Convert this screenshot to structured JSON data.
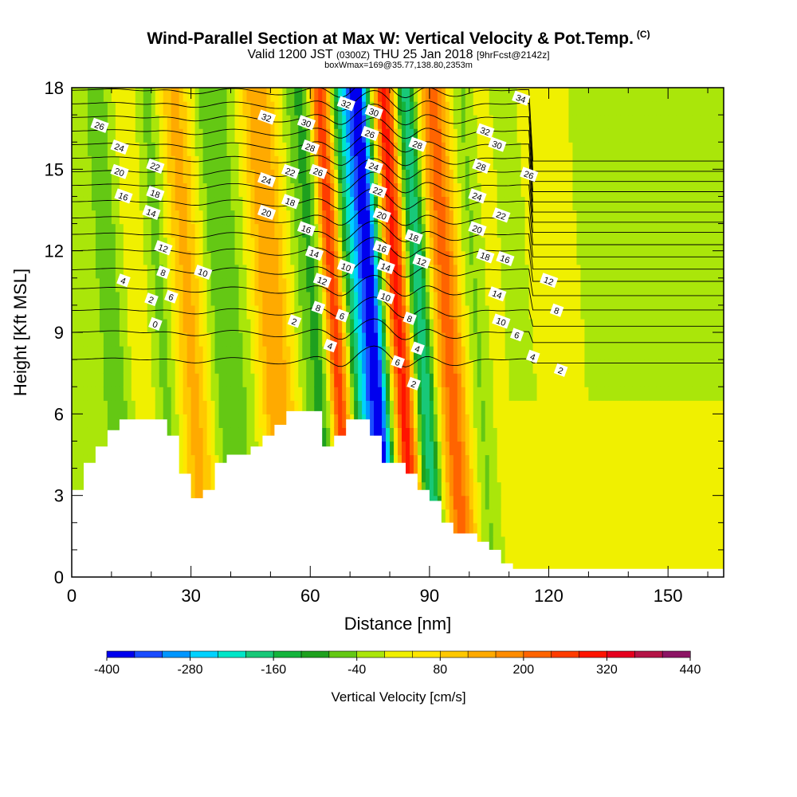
{
  "title": {
    "main": "Wind-Parallel Section at Max W: Vertical Velocity & Pot.Temp.",
    "mark": "(C)",
    "subtitle_a": "Valid 1200 JST",
    "subtitle_b": "(0300Z)",
    "subtitle_c": "THU 25 Jan 2018",
    "subtitle_d": "[9hrFcst@2142z]",
    "boxline": "boxWmax=169@35.77,138.80,2353m"
  },
  "chart_data": {
    "type": "heatmap",
    "xlabel": "Distance [nm]",
    "ylabel": "Height [Kft MSL]",
    "xlim": [
      0,
      164
    ],
    "ylim": [
      0,
      18
    ],
    "x_ticks": [
      0,
      30,
      60,
      90,
      120,
      150
    ],
    "y_ticks": [
      0,
      3,
      6,
      9,
      12,
      15,
      18
    ],
    "colorbar": {
      "title": "Vertical Velocity [cm/s]",
      "levels": [
        -400,
        -360,
        -320,
        -280,
        -240,
        -200,
        -160,
        -120,
        -80,
        -40,
        0,
        40,
        80,
        120,
        160,
        200,
        240,
        280,
        320,
        360,
        400,
        440
      ],
      "labels": [
        "-400",
        "-280",
        "-160",
        "-40",
        "80",
        "200",
        "320",
        "440"
      ],
      "colors": [
        "#0000ee",
        "#1a4cff",
        "#0096ff",
        "#00d2ff",
        "#00e6c8",
        "#18c878",
        "#14b43c",
        "#1ea01e",
        "#64c814",
        "#aae60a",
        "#f0f000",
        "#ffe600",
        "#ffc800",
        "#ffaa00",
        "#ff8c00",
        "#ff6400",
        "#ff3c00",
        "#ff1400",
        "#e6001e",
        "#b41446",
        "#8c1464"
      ]
    },
    "terrain": [
      [
        0,
        3.2
      ],
      [
        3,
        3.2
      ],
      [
        3,
        4.2
      ],
      [
        6,
        4.2
      ],
      [
        6,
        4.8
      ],
      [
        9,
        4.8
      ],
      [
        9,
        5.4
      ],
      [
        12,
        5.4
      ],
      [
        12,
        5.8
      ],
      [
        24,
        5.8
      ],
      [
        24,
        5.2
      ],
      [
        27,
        5.2
      ],
      [
        27,
        3.8
      ],
      [
        30,
        3.8
      ],
      [
        30,
        2.9
      ],
      [
        33,
        2.9
      ],
      [
        33,
        3.2
      ],
      [
        36,
        3.2
      ],
      [
        36,
        4.2
      ],
      [
        39,
        4.2
      ],
      [
        39,
        4.5
      ],
      [
        45,
        4.5
      ],
      [
        45,
        4.8
      ],
      [
        48,
        4.8
      ],
      [
        48,
        5.2
      ],
      [
        51,
        5.2
      ],
      [
        51,
        5.6
      ],
      [
        54,
        5.6
      ],
      [
        54,
        6.1
      ],
      [
        63,
        6.1
      ],
      [
        63,
        4.8
      ],
      [
        66,
        4.8
      ],
      [
        66,
        5.2
      ],
      [
        69,
        5.2
      ],
      [
        69,
        5.8
      ],
      [
        75,
        5.8
      ],
      [
        75,
        5.2
      ],
      [
        78,
        5.2
      ],
      [
        78,
        4.2
      ],
      [
        84,
        4.2
      ],
      [
        84,
        3.8
      ],
      [
        87,
        3.8
      ],
      [
        87,
        3.2
      ],
      [
        90,
        3.2
      ],
      [
        90,
        2.8
      ],
      [
        93,
        2.8
      ],
      [
        93,
        2.0
      ],
      [
        96,
        2.0
      ],
      [
        96,
        1.6
      ],
      [
        102,
        1.6
      ],
      [
        102,
        1.3
      ],
      [
        105,
        1.3
      ],
      [
        105,
        1.0
      ],
      [
        108,
        1.0
      ],
      [
        108,
        0.5
      ],
      [
        111,
        0.5
      ],
      [
        111,
        0.3
      ],
      [
        164,
        0.3
      ]
    ],
    "w_bands": [
      {
        "x": 1,
        "w": 0,
        "width": 4
      },
      {
        "x": 12,
        "w": -60,
        "width": 5
      },
      {
        "x": 19,
        "w": 70,
        "width": 4
      },
      {
        "x": 24,
        "w": -100,
        "width": 4
      },
      {
        "x": 31,
        "w": 150,
        "width": 5
      },
      {
        "x": 38,
        "w": -80,
        "width": 4
      },
      {
        "x": 44,
        "w": -50,
        "width": 4
      },
      {
        "x": 52,
        "w": 160,
        "width": 5
      },
      {
        "x": 60,
        "w": -40,
        "width": 4
      },
      {
        "x": 63,
        "w": -140,
        "width": 3
      },
      {
        "x": 68,
        "w": 360,
        "width": 3
      },
      {
        "x": 72,
        "w": -220,
        "width": 3
      },
      {
        "x": 77,
        "w": -400,
        "width": 3
      },
      {
        "x": 84,
        "w": 320,
        "width": 3
      },
      {
        "x": 89,
        "w": -220,
        "width": 3
      },
      {
        "x": 96,
        "w": 220,
        "width": 4
      },
      {
        "x": 104,
        "w": -60,
        "width": 4
      },
      {
        "x": 108,
        "w": 60,
        "width": 3
      },
      {
        "x": 113,
        "w": -40,
        "width": 4
      },
      {
        "x": 120,
        "w": 20,
        "width": 5
      },
      {
        "x": 127,
        "w": 40,
        "width": 4
      },
      {
        "x": 136,
        "w": -40,
        "width": 8
      },
      {
        "x": 150,
        "w": -40,
        "width": 10
      },
      {
        "x": 160,
        "w": -30,
        "width": 6
      }
    ],
    "theta_contours": [
      {
        "label": "2",
        "base": 8.0
      },
      {
        "label": "4",
        "base": 9.0
      },
      {
        "label": "6",
        "base": 9.8
      },
      {
        "label": "8",
        "base": 10.6
      },
      {
        "label": "10",
        "base": 11.3
      },
      {
        "label": "12",
        "base": 12.0
      },
      {
        "label": "14",
        "base": 12.6
      },
      {
        "label": "16",
        "base": 13.2
      },
      {
        "label": "18",
        "base": 13.8
      },
      {
        "label": "20",
        "base": 14.4
      },
      {
        "label": "22",
        "base": 14.9
      },
      {
        "label": "24",
        "base": 15.4
      },
      {
        "label": "26",
        "base": 15.9
      },
      {
        "label": "28",
        "base": 16.4
      },
      {
        "label": "30",
        "base": 16.9
      },
      {
        "label": "32",
        "base": 17.4
      },
      {
        "label": "34",
        "base": 17.9
      }
    ],
    "theta_labels": [
      {
        "text": "26",
        "x": 7,
        "y": 16.6
      },
      {
        "text": "24",
        "x": 12,
        "y": 15.8
      },
      {
        "text": "20",
        "x": 12,
        "y": 14.9
      },
      {
        "text": "16",
        "x": 13,
        "y": 14.0
      },
      {
        "text": "22",
        "x": 21,
        "y": 15.1
      },
      {
        "text": "18",
        "x": 21,
        "y": 14.1
      },
      {
        "text": "14",
        "x": 20,
        "y": 13.4
      },
      {
        "text": "12",
        "x": 23,
        "y": 12.1
      },
      {
        "text": "8",
        "x": 23,
        "y": 11.2
      },
      {
        "text": "6",
        "x": 25,
        "y": 10.3
      },
      {
        "text": "4",
        "x": 13,
        "y": 10.9
      },
      {
        "text": "2",
        "x": 20,
        "y": 10.2
      },
      {
        "text": "0",
        "x": 21,
        "y": 9.3
      },
      {
        "text": "10",
        "x": 33,
        "y": 11.2
      },
      {
        "text": "32",
        "x": 49,
        "y": 16.9
      },
      {
        "text": "30",
        "x": 59,
        "y": 16.7
      },
      {
        "text": "28",
        "x": 60,
        "y": 15.8
      },
      {
        "text": "26",
        "x": 62,
        "y": 14.9
      },
      {
        "text": "24",
        "x": 49,
        "y": 14.6
      },
      {
        "text": "22",
        "x": 55,
        "y": 14.9
      },
      {
        "text": "18",
        "x": 55,
        "y": 13.8
      },
      {
        "text": "20",
        "x": 49,
        "y": 13.4
      },
      {
        "text": "16",
        "x": 59,
        "y": 12.8
      },
      {
        "text": "14",
        "x": 61,
        "y": 11.9
      },
      {
        "text": "12",
        "x": 63,
        "y": 10.9
      },
      {
        "text": "8",
        "x": 62,
        "y": 9.9
      },
      {
        "text": "6",
        "x": 68,
        "y": 9.6
      },
      {
        "text": "4",
        "x": 65,
        "y": 8.5
      },
      {
        "text": "2",
        "x": 56,
        "y": 9.4
      },
      {
        "text": "10",
        "x": 69,
        "y": 11.4
      },
      {
        "text": "32",
        "x": 69,
        "y": 17.4
      },
      {
        "text": "30",
        "x": 76,
        "y": 17.1
      },
      {
        "text": "26",
        "x": 75,
        "y": 16.3
      },
      {
        "text": "24",
        "x": 76,
        "y": 15.1
      },
      {
        "text": "22",
        "x": 77,
        "y": 14.2
      },
      {
        "text": "20",
        "x": 78,
        "y": 13.3
      },
      {
        "text": "16",
        "x": 78,
        "y": 12.1
      },
      {
        "text": "14",
        "x": 79,
        "y": 11.4
      },
      {
        "text": "10",
        "x": 79,
        "y": 10.3
      },
      {
        "text": "28",
        "x": 87,
        "y": 15.9
      },
      {
        "text": "18",
        "x": 86,
        "y": 12.5
      },
      {
        "text": "12",
        "x": 88,
        "y": 11.6
      },
      {
        "text": "8",
        "x": 85,
        "y": 9.5
      },
      {
        "text": "4",
        "x": 87,
        "y": 8.4
      },
      {
        "text": "6",
        "x": 82,
        "y": 7.9
      },
      {
        "text": "2",
        "x": 86,
        "y": 7.1
      },
      {
        "text": "32",
        "x": 104,
        "y": 16.4
      },
      {
        "text": "30",
        "x": 107,
        "y": 15.9
      },
      {
        "text": "28",
        "x": 103,
        "y": 15.1
      },
      {
        "text": "24",
        "x": 102,
        "y": 14.0
      },
      {
        "text": "26",
        "x": 115,
        "y": 14.8
      },
      {
        "text": "22",
        "x": 108,
        "y": 13.3
      },
      {
        "text": "20",
        "x": 102,
        "y": 12.8
      },
      {
        "text": "18",
        "x": 104,
        "y": 11.8
      },
      {
        "text": "16",
        "x": 109,
        "y": 11.7
      },
      {
        "text": "14",
        "x": 107,
        "y": 10.4
      },
      {
        "text": "12",
        "x": 120,
        "y": 10.9
      },
      {
        "text": "10",
        "x": 108,
        "y": 9.4
      },
      {
        "text": "8",
        "x": 122,
        "y": 9.8
      },
      {
        "text": "6",
        "x": 112,
        "y": 8.9
      },
      {
        "text": "4",
        "x": 116,
        "y": 8.1
      },
      {
        "text": "2",
        "x": 123,
        "y": 7.6
      },
      {
        "text": "34",
        "x": 113,
        "y": 17.6
      }
    ]
  }
}
